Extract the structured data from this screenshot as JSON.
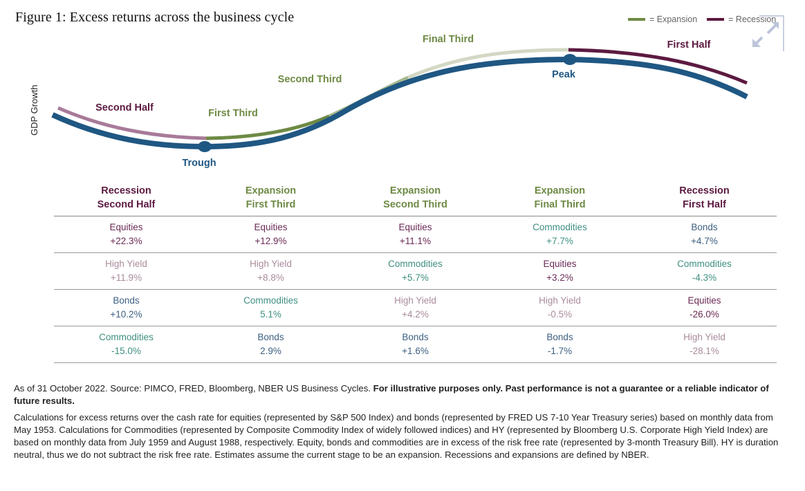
{
  "title": "Figure 1: Excess returns across the business cycle",
  "legend": {
    "items": [
      {
        "label": "= Expansion",
        "color": "#6e8a45"
      },
      {
        "label": "= Recession",
        "color": "#5c1a40"
      }
    ]
  },
  "colors": {
    "blue": "#1f5783",
    "recession_dark": "#5c1a40",
    "recession_light": "#a87a99",
    "expansion_dark": "#6e8a45",
    "expansion_mid": "#a9b88f",
    "expansion_light": "#d3d8c4",
    "equities": "#6a2a55",
    "high_yield": "#a98b9c",
    "bonds": "#3d5f80",
    "commodities": "#3e8f80"
  },
  "chart_data": {
    "type": "table",
    "title": "Figure 1: Excess returns across the business cycle",
    "ylabel": "GDP Growth",
    "cycle_labels": {
      "second_half": "Second Half",
      "first_third": "First Third",
      "second_third": "Second Third",
      "final_third": "Final Third",
      "first_half": "First Half",
      "trough": "Trough",
      "peak": "Peak"
    },
    "columns": [
      {
        "phase": "Recession",
        "stage": "Second Half",
        "type": "recession"
      },
      {
        "phase": "Expansion",
        "stage": "First Third",
        "type": "expansion"
      },
      {
        "phase": "Expansion",
        "stage": "Second Third",
        "type": "expansion"
      },
      {
        "phase": "Expansion",
        "stage": "Final Third",
        "type": "expansion"
      },
      {
        "phase": "Recession",
        "stage": "First Half",
        "type": "recession"
      }
    ],
    "rows": [
      [
        {
          "asset": "Equities",
          "value": "+22.3%"
        },
        {
          "asset": "Equities",
          "value": "+12.9%"
        },
        {
          "asset": "Equities",
          "value": "+11.1%"
        },
        {
          "asset": "Commodities",
          "value": "+7.7%"
        },
        {
          "asset": "Bonds",
          "value": "+4.7%"
        }
      ],
      [
        {
          "asset": "High Yield",
          "value": "+11.9%"
        },
        {
          "asset": "High Yield",
          "value": "+8.8%"
        },
        {
          "asset": "Commodities",
          "value": "+5.7%"
        },
        {
          "asset": "Equities",
          "value": "+3.2%"
        },
        {
          "asset": "Commodities",
          "value": "-4.3%"
        }
      ],
      [
        {
          "asset": "Bonds",
          "value": "+10.2%"
        },
        {
          "asset": "Commodities",
          "value": "5.1%"
        },
        {
          "asset": "High Yield",
          "value": "+4.2%"
        },
        {
          "asset": "High Yield",
          "value": "-0.5%"
        },
        {
          "asset": "Equities",
          "value": "-26.0%"
        }
      ],
      [
        {
          "asset": "Commodities",
          "value": "-15.0%"
        },
        {
          "asset": "Bonds",
          "value": "2.9%"
        },
        {
          "asset": "Bonds",
          "value": "+1.6%"
        },
        {
          "asset": "Bonds",
          "value": "-1.7%"
        },
        {
          "asset": "High Yield",
          "value": "-28.1%"
        }
      ]
    ]
  },
  "footnote": {
    "line1_regular": "As of  31 October 2022. Source: PIMCO, FRED, Bloomberg, NBER US Business Cycles. ",
    "line1_bold": "For illustrative purposes only. Past performance is not a guarantee or a reliable indicator of future results.",
    "paragraph2": "Calculations for excess returns over the cash rate for equities (represented by S&P 500 Index) and bonds (represented by FRED US 7-10 Year Treasury series) based on monthly data from May 1953. Calculations for Commodities (represented by Composite Commodity Index of widely followed indices) and HY (represented by Bloomberg U.S. Corporate High Yield Index) are based on monthly data from July 1959 and August 1988, respectively. Equity, bonds and commodities are in excess of the risk free rate (represented by 3-month Treasury Bill). HY is duration neutral, thus we do not subtract the risk free rate. Estimates assume the current stage to be an expansion. Recessions and expansions are defined by NBER."
  }
}
